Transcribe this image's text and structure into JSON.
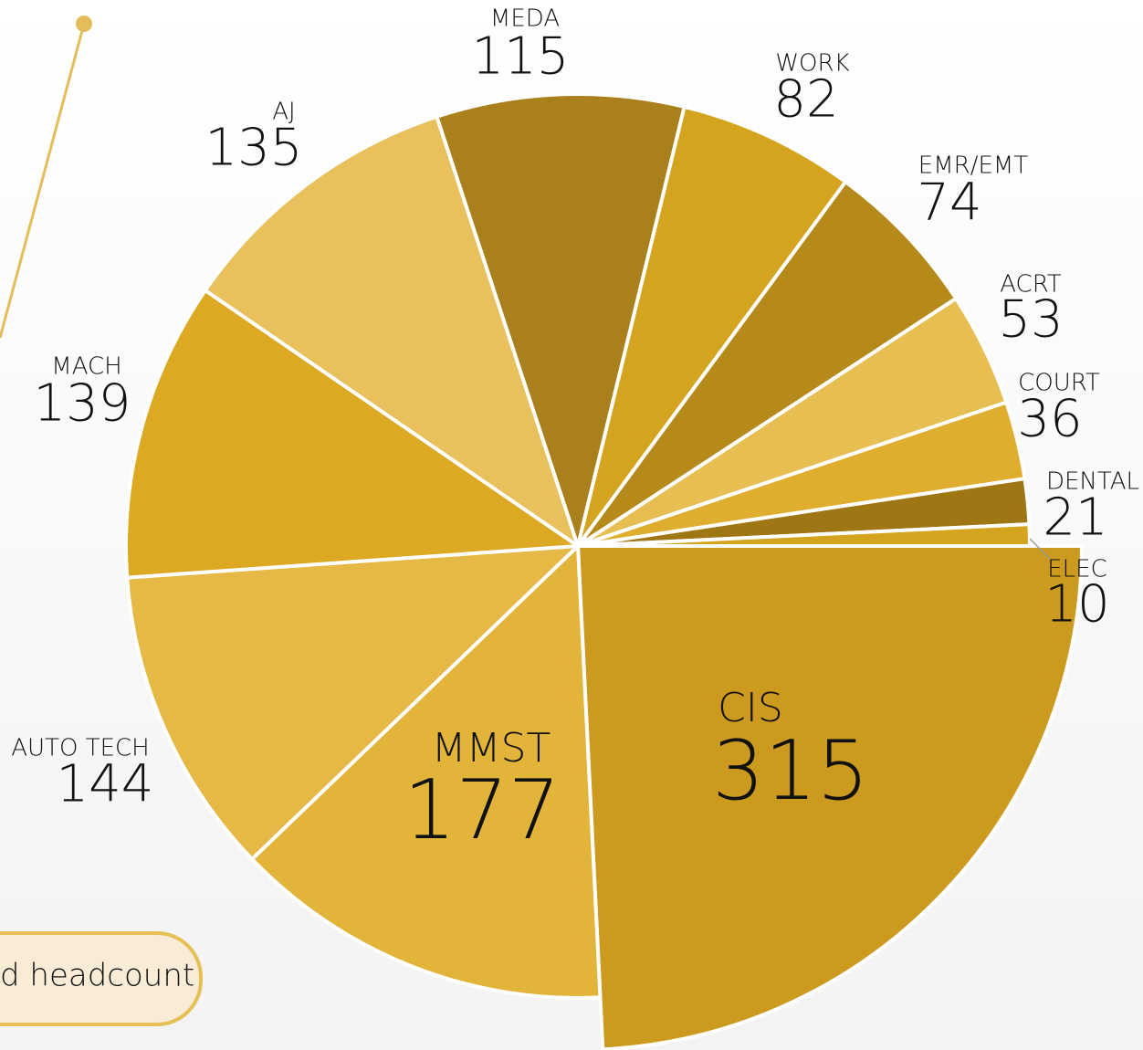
{
  "chart_data": {
    "type": "pie",
    "categories": [
      "CIS",
      "MMST",
      "AUTO TECH",
      "MACH",
      "AJ",
      "MEDA",
      "WORK",
      "EMR/EMT",
      "ACRT",
      "COURT",
      "DENTAL",
      "ELEC"
    ],
    "values": [
      315,
      177,
      144,
      139,
      135,
      115,
      82,
      74,
      53,
      36,
      21,
      10
    ],
    "colors": [
      "#cc9a1e",
      "#e2b43a",
      "#e6b845",
      "#dda822",
      "#e8c05c",
      "#a9801b",
      "#d4a41f",
      "#b58a1a",
      "#e6be52",
      "#e0ae2e",
      "#9e7614",
      "#d4a41f"
    ],
    "annotation": "d headcount"
  }
}
